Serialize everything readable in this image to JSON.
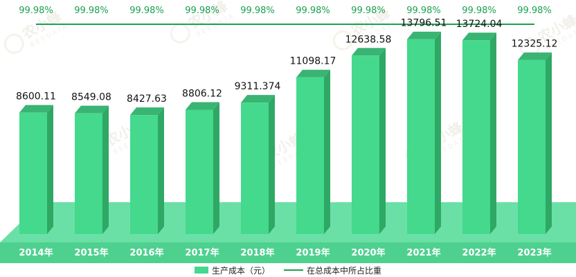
{
  "chart_data": {
    "type": "bar",
    "categories": [
      "2014年",
      "2015年",
      "2016年",
      "2017年",
      "2018年",
      "2019年",
      "2020年",
      "2021年",
      "2022年",
      "2023年"
    ],
    "series": [
      {
        "name": "生产成本（元）",
        "values": [
          8600.11,
          8549.08,
          8427.63,
          8806.12,
          9311.374,
          11098.17,
          12638.58,
          13796.51,
          13724.04,
          12325.12
        ],
        "labels": [
          "8600.11",
          "8549.08",
          "8427.63",
          "8806.12",
          "9311.374",
          "11098.17",
          "12638.58",
          "13796.51",
          "13724.04",
          "12325.12"
        ],
        "color": "#44d98c"
      },
      {
        "name": "在总成本中所占比重",
        "values": [
          99.98,
          99.98,
          99.98,
          99.98,
          99.98,
          99.98,
          99.98,
          99.98,
          99.98,
          99.98
        ],
        "labels": [
          "99.98%",
          "99.98%",
          "99.98%",
          "99.98%",
          "99.98%",
          "99.98%",
          "99.98%",
          "99.98%",
          "99.98%",
          "99.98%"
        ],
        "color": "#1aa14f"
      }
    ],
    "legend_position": "bottom",
    "grid": false
  },
  "watermark": {
    "text": "农小蜂",
    "subtext": "BEEDATA"
  },
  "colors": {
    "bar_front": "#44d98c",
    "bar_top": "#3ab473",
    "bar_side": "#2ea864",
    "floor": "#6be0a6",
    "floor_front": "#4ed18f",
    "line": "#1aa14f",
    "percent_text": "#1aa14f"
  }
}
